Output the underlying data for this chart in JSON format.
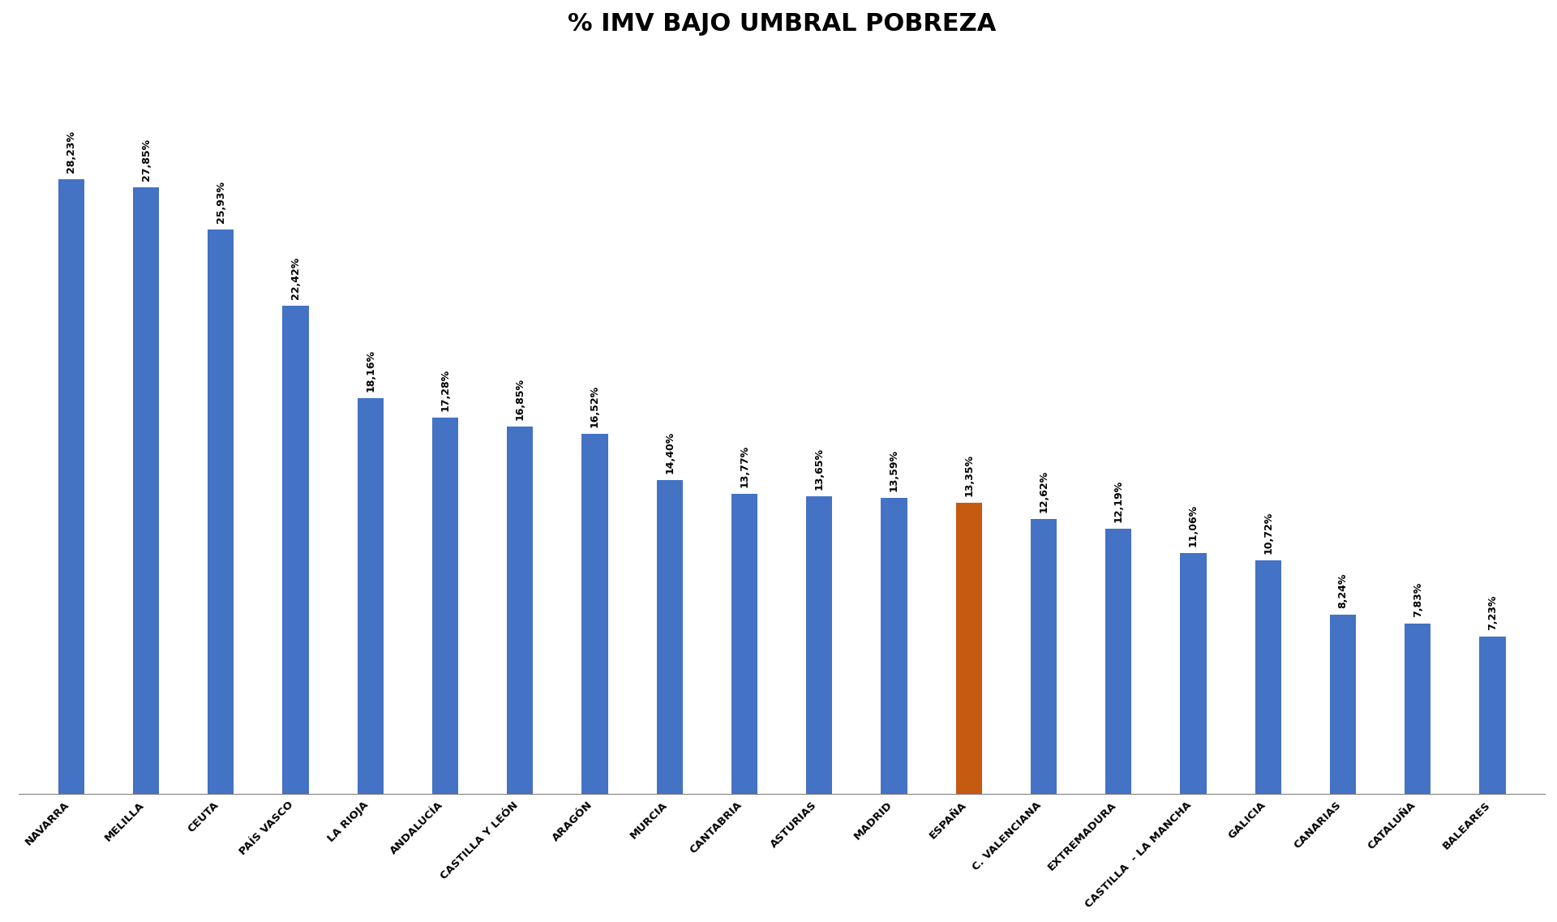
{
  "title": "% IMV BAJO UMBRAL POBREZA",
  "categories": [
    "NAVARRA",
    "MELILLA",
    "CEUTA",
    "PAÍS VASCO",
    "LA RIOJA",
    "ANDALUCÍA",
    "CASTILLA Y LEÓN",
    "ARAGÓN",
    "MURCIA",
    "CANTABRIA",
    "ASTURIAS",
    "MADRID",
    "ESPAÑA",
    "C. VALENCIANA",
    "EXTREMADURA",
    "CASTILLA  - LA MANCHA",
    "GALICIA",
    "CANARIAS",
    "CATALUÑA",
    "BALEARES"
  ],
  "values": [
    28.23,
    27.85,
    25.93,
    22.42,
    18.16,
    17.28,
    16.85,
    16.52,
    14.4,
    13.77,
    13.65,
    13.59,
    13.35,
    12.62,
    12.19,
    11.06,
    10.72,
    8.24,
    7.83,
    7.23
  ],
  "labels": [
    "28,23%",
    "27,85%",
    "25,93%",
    "22,42%",
    "18,16%",
    "17,28%",
    "16,85%",
    "16,52%",
    "14,40%",
    "13,77%",
    "13,65%",
    "13,59%",
    "13,35%",
    "12,62%",
    "12,19%",
    "11,06%",
    "10,72%",
    "8,24%",
    "7,83%",
    "7,23%"
  ],
  "bar_color_default": "#4472C4",
  "bar_color_highlight": "#C55A11",
  "highlight_index": 12,
  "background_color": "#FFFFFF",
  "title_fontsize": 22,
  "label_fontsize": 9,
  "tick_fontsize": 9.5,
  "ylim": [
    0,
    34
  ],
  "bar_width": 0.35
}
